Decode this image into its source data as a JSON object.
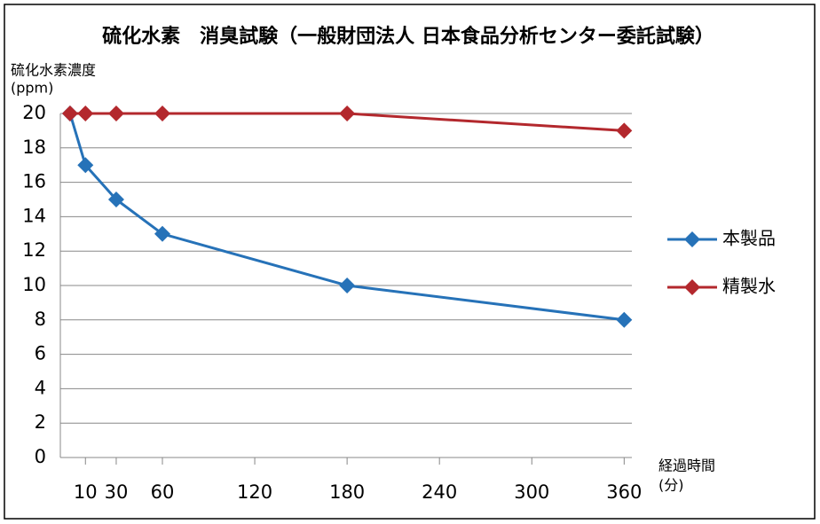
{
  "chart_data": {
    "type": "line",
    "title": "硫化水素　消臭試験（一般財団法人 日本食品分析センター委託試験）",
    "y_label": "硫化水素濃度",
    "y_unit": "(ppm)",
    "x_label": "経過時間",
    "x_unit": "(分)",
    "x": [
      0,
      10,
      30,
      60,
      180,
      360
    ],
    "series": [
      {
        "name": "本製品",
        "color": "#2672b8",
        "values": [
          20,
          17,
          15,
          13,
          10,
          8
        ]
      },
      {
        "name": "精製水",
        "color": "#b3282d",
        "values": [
          20,
          20,
          20,
          20,
          20,
          19
        ]
      }
    ],
    "xlim": [
      -6.3,
      365
    ],
    "xticks": [
      10,
      30,
      60,
      120,
      180,
      240,
      300,
      360
    ],
    "ylim": [
      0,
      20
    ],
    "yticks": [
      0,
      2,
      4,
      6,
      8,
      10,
      12,
      14,
      16,
      18,
      20
    ],
    "grid": true,
    "legend": "right"
  }
}
